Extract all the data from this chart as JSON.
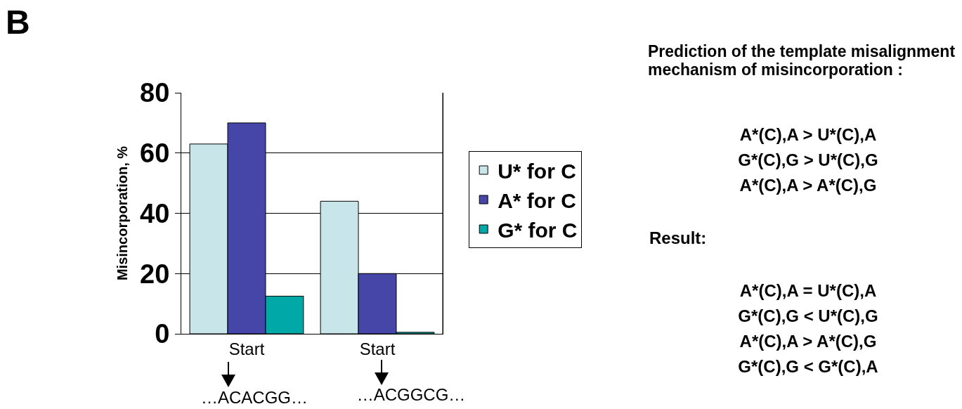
{
  "chart_data": {
    "type": "bar",
    "ylabel": "Misincorporation, %",
    "categories": [
      "Start",
      "Start"
    ],
    "series": [
      {
        "name": "U* for C",
        "color": "#c8e6ea",
        "values": [
          63,
          44
        ]
      },
      {
        "name": "A* for C",
        "color": "#4646a8",
        "values": [
          70,
          20
        ]
      },
      {
        "name": "G* for C",
        "color": "#00a8a8",
        "values": [
          12.5,
          0.5
        ]
      }
    ],
    "ylim": [
      0,
      80
    ],
    "yticks": [
      0,
      20,
      40,
      60,
      80
    ],
    "grid": "y",
    "legend": "right",
    "annotations": [
      "B",
      "Prediction of the template misalignment mechanism of misincorporation :",
      "A*(C),A > U*(C),A",
      "G*(C),G > U*(C),G",
      "A*(C),A > A*(C),G",
      "Result:",
      "A*(C),A = U*(C),A",
      "G*(C),G < U*(C),G",
      "A*(C),A > A*(C),G",
      "G*(C),G < G*(C),A",
      "…ACACGG…",
      "…ACGGCG…"
    ]
  }
}
